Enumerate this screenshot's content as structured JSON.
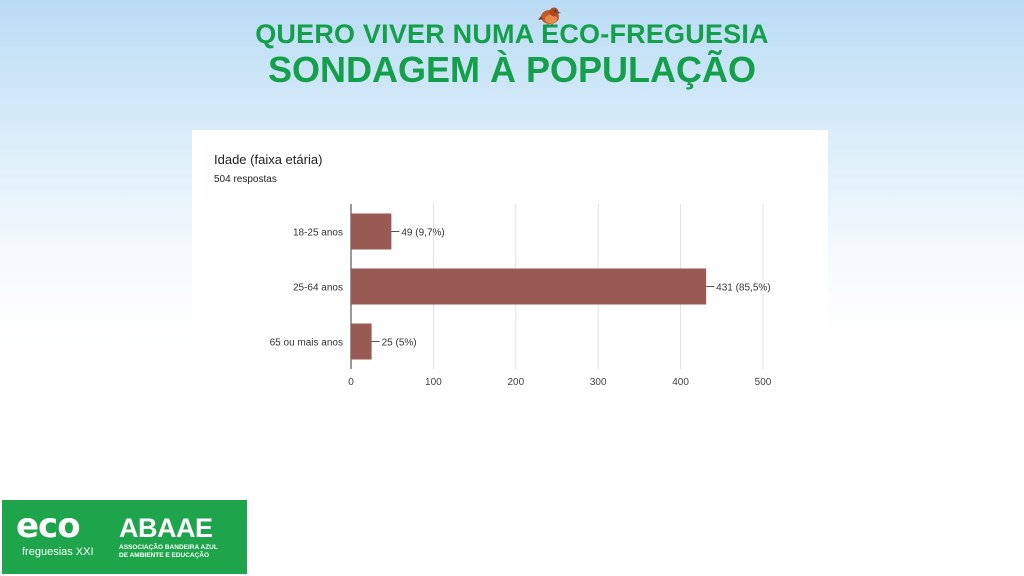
{
  "header": {
    "line1": "QUERO VIVER NUMA ECO-FREGUESIA",
    "line2": "SONDAGEM À POPULAÇÃO"
  },
  "survey": {
    "question": "Idade (faixa etária)",
    "responses": "504 respostas"
  },
  "chart_data": {
    "type": "bar",
    "orientation": "horizontal",
    "categories": [
      "18-25 anos",
      "25-64 anos",
      "65 ou mais anos"
    ],
    "values": [
      49,
      431,
      25
    ],
    "data_labels": [
      "49 (9,7%)",
      "431 (85,5%)",
      "25 (5%)"
    ],
    "xlim": [
      0,
      500
    ],
    "xticks": [
      "0",
      "100",
      "200",
      "300",
      "400",
      "500"
    ],
    "grid": true,
    "bar_color": "#9a5a54"
  },
  "logos": {
    "eco": "eco",
    "freguesias": "freguesias XXI",
    "abaae": "ABAAE",
    "assoc_line1": "ASSOCIAÇÃO BANDEIRA AZUL",
    "assoc_line2": "DE AMBIENTE E EDUCAÇÃO"
  }
}
